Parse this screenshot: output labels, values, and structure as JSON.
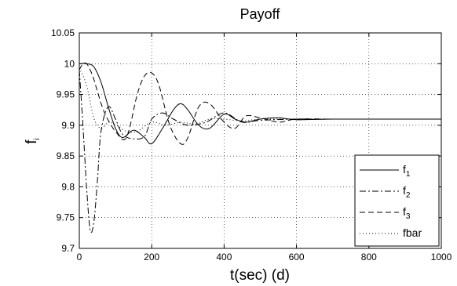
{
  "chart_data": {
    "type": "line",
    "title": "Payoff",
    "xlabel": "t(sec)  (d)",
    "ylabel_main": "f",
    "ylabel_sub": "i",
    "xlim": [
      0,
      1000
    ],
    "ylim": [
      9.7,
      10.05
    ],
    "xticks": [
      0,
      200,
      400,
      600,
      800,
      1000
    ],
    "xtick_labels": [
      "0",
      "200",
      "400",
      "600",
      "800",
      "1000"
    ],
    "yticks": [
      9.7,
      9.75,
      9.8,
      9.85,
      9.9,
      9.95,
      10,
      10.05
    ],
    "ytick_labels": [
      "9.7",
      "9.75",
      "9.8",
      "9.85",
      "9.9",
      "9.95",
      "10",
      "10.05"
    ],
    "grid": true,
    "legend_position": "bottom-right",
    "series": [
      {
        "main": "f",
        "sub": "1",
        "dash": "solid",
        "x": [
          0,
          20,
          40,
          60,
          80,
          100,
          120,
          150,
          180,
          200,
          230,
          260,
          280,
          300,
          330,
          360,
          400,
          430,
          460,
          500,
          550,
          600,
          700,
          800,
          900,
          1000
        ],
        "y": [
          10.0,
          10.0,
          9.995,
          9.97,
          9.93,
          9.895,
          9.88,
          9.892,
          9.88,
          9.87,
          9.895,
          9.925,
          9.935,
          9.925,
          9.9,
          9.895,
          9.918,
          9.91,
          9.905,
          9.91,
          9.912,
          9.909,
          9.91,
          9.91,
          9.91,
          9.91
        ]
      },
      {
        "main": "f",
        "sub": "2",
        "dash": "dashdot",
        "x": [
          0,
          10,
          20,
          30,
          40,
          50,
          60,
          80,
          100,
          120,
          150,
          180,
          200,
          230,
          260,
          300,
          350,
          400,
          450,
          500,
          600,
          700,
          800,
          1000
        ],
        "y": [
          9.99,
          9.9,
          9.8,
          9.73,
          9.742,
          9.81,
          9.89,
          9.93,
          9.91,
          9.885,
          9.878,
          9.882,
          9.91,
          9.92,
          9.91,
          9.9,
          9.905,
          9.92,
          9.905,
          9.908,
          9.91,
          9.91,
          9.91,
          9.91
        ]
      },
      {
        "main": "f",
        "sub": "3",
        "dash": "dashed",
        "x": [
          0,
          10,
          20,
          30,
          40,
          50,
          70,
          100,
          130,
          160,
          180,
          200,
          220,
          250,
          280,
          300,
          330,
          360,
          400,
          430,
          460,
          500,
          550,
          600,
          700,
          800,
          1000
        ],
        "y": [
          9.99,
          10.0,
          10.0,
          9.99,
          9.975,
          9.955,
          9.92,
          9.89,
          9.88,
          9.95,
          9.98,
          9.985,
          9.965,
          9.9,
          9.87,
          9.88,
          9.93,
          9.935,
          9.905,
          9.895,
          9.915,
          9.912,
          9.905,
          9.91,
          9.91,
          9.91,
          9.91
        ]
      },
      {
        "main": "fbar",
        "sub": "",
        "dash": "dotted",
        "x": [
          0,
          20,
          40,
          60,
          80,
          100,
          130,
          160,
          200,
          240,
          280,
          320,
          360,
          400,
          450,
          500,
          600,
          700,
          800,
          1000
        ],
        "y": [
          9.993,
          9.965,
          9.912,
          9.895,
          9.905,
          9.901,
          9.89,
          9.89,
          9.905,
          9.9,
          9.905,
          9.902,
          9.91,
          9.91,
          9.907,
          9.91,
          9.91,
          9.91,
          9.91,
          9.91
        ]
      }
    ]
  }
}
